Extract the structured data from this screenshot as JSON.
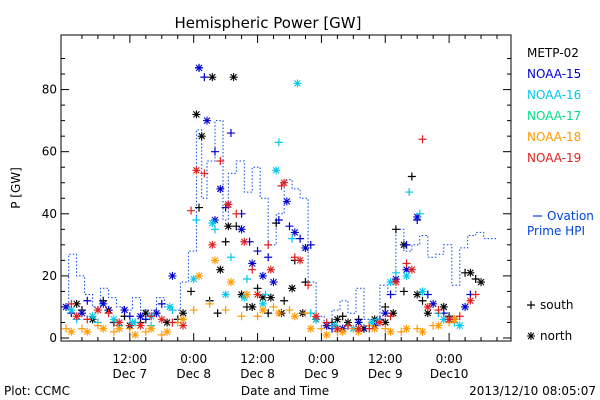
{
  "chart_data": {
    "type": "scatter",
    "title": "Hemispheric Power [GW]",
    "xlabel": "Date and Time",
    "ylabel": "P [GW]",
    "ylim": [
      0,
      95
    ],
    "xlim": [
      0,
      81
    ],
    "x_unit": "hours from 00:00 Dec 7",
    "y_ticks": [
      0,
      20,
      40,
      60,
      80
    ],
    "x_ticks": [
      {
        "x": 12,
        "time": "12:00",
        "date": "Dec 7"
      },
      {
        "x": 24,
        "time": "0:00",
        "date": "Dec 8"
      },
      {
        "x": 36,
        "time": "12:00",
        "date": "Dec 8"
      },
      {
        "x": 48,
        "time": "0:00",
        "date": "Dec 9"
      },
      {
        "x": 60,
        "time": "12:00",
        "date": "Dec 9"
      },
      {
        "x": 72,
        "time": "0:00",
        "date": "Dec10"
      }
    ],
    "footer_left": "Plot: CCMC",
    "footer_right": "2013/12/10 08:05:07",
    "marker_legend": [
      {
        "symbol": "+",
        "label": "south"
      },
      {
        "symbol": "*",
        "label": "north"
      }
    ],
    "series": [
      {
        "name": "METP-02",
        "color": "#000000",
        "south": [
          [
            3,
            9
          ],
          [
            7,
            12
          ],
          [
            9,
            5
          ],
          [
            11,
            7
          ],
          [
            14,
            5
          ],
          [
            17,
            8
          ],
          [
            21,
            6
          ],
          [
            23.5,
            15
          ],
          [
            25,
            42
          ],
          [
            27,
            12
          ],
          [
            28.5,
            8
          ],
          [
            30,
            31
          ],
          [
            32,
            36
          ],
          [
            34,
            10
          ],
          [
            36,
            16
          ],
          [
            38,
            8
          ],
          [
            39.5,
            37
          ],
          [
            41,
            12
          ],
          [
            43,
            25
          ],
          [
            45,
            18
          ],
          [
            50,
            5
          ],
          [
            52,
            7
          ],
          [
            55,
            6
          ],
          [
            57,
            4
          ],
          [
            60,
            10
          ],
          [
            62,
            35
          ],
          [
            63.5,
            15
          ],
          [
            65,
            52
          ],
          [
            67,
            12
          ],
          [
            70,
            8
          ],
          [
            72,
            7
          ],
          [
            75,
            21
          ],
          [
            77,
            19
          ]
        ],
        "north": [
          [
            2,
            11
          ],
          [
            5,
            6
          ],
          [
            8,
            9
          ],
          [
            12,
            4
          ],
          [
            15,
            8
          ],
          [
            19,
            5
          ],
          [
            22,
            8
          ],
          [
            24.5,
            72
          ],
          [
            25.5,
            65
          ],
          [
            27.5,
            84
          ],
          [
            29,
            22
          ],
          [
            30.5,
            36
          ],
          [
            31.5,
            84
          ],
          [
            33,
            14
          ],
          [
            35,
            10
          ],
          [
            37,
            13
          ],
          [
            38.5,
            13
          ],
          [
            40.5,
            8
          ],
          [
            42.5,
            16
          ],
          [
            44.5,
            8
          ],
          [
            47,
            6
          ],
          [
            49,
            4
          ],
          [
            51,
            6
          ],
          [
            53,
            5
          ],
          [
            56,
            3
          ],
          [
            58,
            6
          ],
          [
            60,
            5
          ],
          [
            61.5,
            8
          ],
          [
            63.5,
            30
          ],
          [
            66,
            14
          ],
          [
            68,
            8
          ],
          [
            71,
            10
          ],
          [
            73,
            6
          ],
          [
            76,
            21
          ],
          [
            78,
            18
          ]
        ]
      },
      {
        "name": "NOAA-15",
        "color": "#0000cc",
        "south": [
          [
            1,
            8
          ],
          [
            4,
            12
          ],
          [
            8,
            9
          ],
          [
            12,
            7
          ],
          [
            15,
            6
          ],
          [
            18,
            11
          ],
          [
            25,
            87
          ],
          [
            26,
            84
          ],
          [
            28,
            60
          ],
          [
            30,
            42
          ],
          [
            31,
            66
          ],
          [
            33,
            40
          ],
          [
            34.5,
            31
          ],
          [
            36,
            28
          ],
          [
            38,
            26
          ],
          [
            40,
            38
          ],
          [
            42,
            36
          ],
          [
            44,
            32
          ],
          [
            46,
            30
          ],
          [
            50,
            3
          ],
          [
            53,
            4
          ],
          [
            56,
            3
          ],
          [
            59,
            6
          ],
          [
            61,
            14
          ],
          [
            64,
            30
          ],
          [
            66,
            38
          ],
          [
            68,
            14
          ],
          [
            71,
            8
          ],
          [
            73,
            6
          ],
          [
            76,
            14
          ]
        ],
        "north": [
          [
            0,
            10
          ],
          [
            3,
            8
          ],
          [
            7,
            11
          ],
          [
            11,
            9
          ],
          [
            14,
            7
          ],
          [
            17,
            8
          ],
          [
            20,
            20
          ],
          [
            25,
            87
          ],
          [
            26.5,
            70
          ],
          [
            28,
            38
          ],
          [
            29,
            48
          ],
          [
            30.5,
            43
          ],
          [
            33,
            35
          ],
          [
            35,
            24
          ],
          [
            37,
            20
          ],
          [
            39,
            18
          ],
          [
            41.5,
            44
          ],
          [
            43,
            34
          ],
          [
            45,
            29
          ],
          [
            49,
            4
          ],
          [
            52,
            3
          ],
          [
            55,
            5
          ],
          [
            58,
            4
          ],
          [
            60,
            8
          ],
          [
            62,
            19
          ],
          [
            64,
            22
          ],
          [
            66,
            39
          ],
          [
            69,
            11
          ],
          [
            72,
            6
          ],
          [
            75,
            10
          ]
        ]
      },
      {
        "name": "NOAA-16",
        "color": "#00c8ee",
        "south": [
          [
            2,
            6
          ],
          [
            6,
            5
          ],
          [
            10,
            4
          ],
          [
            13,
            5
          ],
          [
            16,
            4
          ],
          [
            20,
            9
          ],
          [
            24.5,
            38
          ],
          [
            28,
            35
          ],
          [
            31,
            26
          ],
          [
            34,
            19
          ],
          [
            37.5,
            14
          ],
          [
            40,
            63
          ],
          [
            42.5,
            32
          ],
          [
            46,
            8
          ],
          [
            51,
            3
          ],
          [
            55,
            3
          ],
          [
            58.5,
            6
          ],
          [
            62,
            21
          ],
          [
            64.5,
            47
          ],
          [
            66.5,
            40
          ],
          [
            70,
            8
          ],
          [
            73,
            5
          ]
        ],
        "north": [
          [
            1,
            9
          ],
          [
            5,
            7
          ],
          [
            9,
            6
          ],
          [
            12.5,
            5
          ],
          [
            16,
            7
          ],
          [
            19.5,
            10
          ],
          [
            24,
            19
          ],
          [
            27.5,
            37
          ],
          [
            30,
            14
          ],
          [
            33.5,
            13
          ],
          [
            37,
            11
          ],
          [
            39.5,
            54
          ],
          [
            43.5,
            82
          ],
          [
            47,
            6
          ],
          [
            50.5,
            4
          ],
          [
            54,
            3
          ],
          [
            57.5,
            5
          ],
          [
            61,
            18
          ],
          [
            64,
            20
          ],
          [
            67,
            15
          ],
          [
            71,
            6
          ],
          [
            74,
            4
          ]
        ]
      },
      {
        "name": "NOAA-17",
        "color": "#00dd88",
        "south": [],
        "north": []
      },
      {
        "name": "NOAA-18",
        "color": "#ff9a00",
        "south": [
          [
            0,
            3
          ],
          [
            3,
            3
          ],
          [
            6,
            4
          ],
          [
            9,
            2
          ],
          [
            12,
            3
          ],
          [
            15,
            2
          ],
          [
            18,
            1
          ],
          [
            21,
            5
          ],
          [
            24,
            9
          ],
          [
            27,
            11
          ],
          [
            30,
            9
          ],
          [
            33,
            7
          ],
          [
            36,
            7
          ],
          [
            39,
            10
          ],
          [
            42,
            9
          ],
          [
            45,
            8
          ],
          [
            48,
            3
          ],
          [
            51,
            2
          ],
          [
            54,
            3
          ],
          [
            57,
            4
          ],
          [
            60,
            3
          ],
          [
            63,
            2
          ],
          [
            66,
            3
          ],
          [
            69,
            4
          ],
          [
            72,
            5
          ]
        ],
        "north": [
          [
            1,
            2
          ],
          [
            4,
            2
          ],
          [
            7,
            3
          ],
          [
            10,
            3
          ],
          [
            13,
            1
          ],
          [
            16,
            3
          ],
          [
            19,
            2
          ],
          [
            22,
            6
          ],
          [
            25,
            20
          ],
          [
            28,
            25
          ],
          [
            31,
            18
          ],
          [
            34,
            14
          ],
          [
            37,
            9
          ],
          [
            40,
            8
          ],
          [
            43,
            7
          ],
          [
            46,
            3
          ],
          [
            49,
            1
          ],
          [
            52,
            2
          ],
          [
            55,
            2
          ],
          [
            58,
            3
          ],
          [
            61,
            2
          ],
          [
            64,
            3
          ],
          [
            67,
            2
          ],
          [
            70,
            4
          ],
          [
            73,
            6
          ]
        ]
      },
      {
        "name": "NOAA-19",
        "color": "#e02020",
        "south": [
          [
            1,
            11
          ],
          [
            4,
            6
          ],
          [
            8,
            8
          ],
          [
            12,
            4
          ],
          [
            16,
            7
          ],
          [
            20,
            5
          ],
          [
            23.5,
            41
          ],
          [
            26,
            53
          ],
          [
            29,
            57
          ],
          [
            32,
            40
          ],
          [
            35,
            22
          ],
          [
            38,
            30
          ],
          [
            40.5,
            49
          ],
          [
            43,
            26
          ],
          [
            45.5,
            17
          ],
          [
            49,
            5
          ],
          [
            53,
            4
          ],
          [
            57,
            3
          ],
          [
            61,
            7
          ],
          [
            64,
            24
          ],
          [
            67,
            64
          ],
          [
            70,
            9
          ],
          [
            74,
            7
          ],
          [
            77,
            14
          ]
        ],
        "north": [
          [
            2,
            7
          ],
          [
            6,
            9
          ],
          [
            10,
            5
          ],
          [
            14,
            4
          ],
          [
            18,
            6
          ],
          [
            22,
            4
          ],
          [
            24.5,
            54
          ],
          [
            27.5,
            30
          ],
          [
            30.5,
            43
          ],
          [
            33.5,
            31
          ],
          [
            36,
            14
          ],
          [
            38.5,
            22
          ],
          [
            41,
            50
          ],
          [
            44,
            25
          ],
          [
            47,
            7
          ],
          [
            51,
            3
          ],
          [
            55,
            3
          ],
          [
            59,
            5
          ],
          [
            62,
            18
          ],
          [
            65,
            22
          ],
          [
            68,
            10
          ],
          [
            72,
            6
          ],
          [
            76,
            12
          ]
        ]
      }
    ],
    "ovation": {
      "label": [
        "Ovation",
        "Prime HPI"
      ],
      "color": "#0044dd",
      "steps": [
        [
          0,
          10
        ],
        [
          0.5,
          27
        ],
        [
          2,
          20
        ],
        [
          3.5,
          14
        ],
        [
          5,
          10
        ],
        [
          6.5,
          16
        ],
        [
          8,
          13
        ],
        [
          9.5,
          10
        ],
        [
          11,
          9
        ],
        [
          12.5,
          13
        ],
        [
          14,
          9
        ],
        [
          15.5,
          9
        ],
        [
          17,
          13
        ],
        [
          18.5,
          10
        ],
        [
          20,
          9
        ],
        [
          21.5,
          18
        ],
        [
          23,
          28
        ],
        [
          24.5,
          67
        ],
        [
          25.5,
          45
        ],
        [
          26.5,
          57
        ],
        [
          28,
          70
        ],
        [
          29.5,
          38
        ],
        [
          30.5,
          53
        ],
        [
          32,
          57
        ],
        [
          33.5,
          47
        ],
        [
          35,
          55
        ],
        [
          36.5,
          45
        ],
        [
          38,
          30
        ],
        [
          39.5,
          40
        ],
        [
          41,
          51
        ],
        [
          42.5,
          48
        ],
        [
          44,
          45
        ],
        [
          45.5,
          18
        ],
        [
          47,
          7
        ],
        [
          48.5,
          5
        ],
        [
          50,
          9
        ],
        [
          51.5,
          12
        ],
        [
          53,
          8
        ],
        [
          54.5,
          16
        ],
        [
          56,
          6
        ],
        [
          57.5,
          5
        ],
        [
          59,
          17
        ],
        [
          60.5,
          14
        ],
        [
          62,
          35
        ],
        [
          63.5,
          28
        ],
        [
          65,
          30
        ],
        [
          66.5,
          33
        ],
        [
          68,
          26
        ],
        [
          69.5,
          27
        ],
        [
          71,
          30
        ],
        [
          72.5,
          17
        ],
        [
          74,
          29
        ],
        [
          75.5,
          33
        ],
        [
          77,
          34
        ],
        [
          78.5,
          32
        ],
        [
          80,
          32
        ]
      ]
    }
  }
}
